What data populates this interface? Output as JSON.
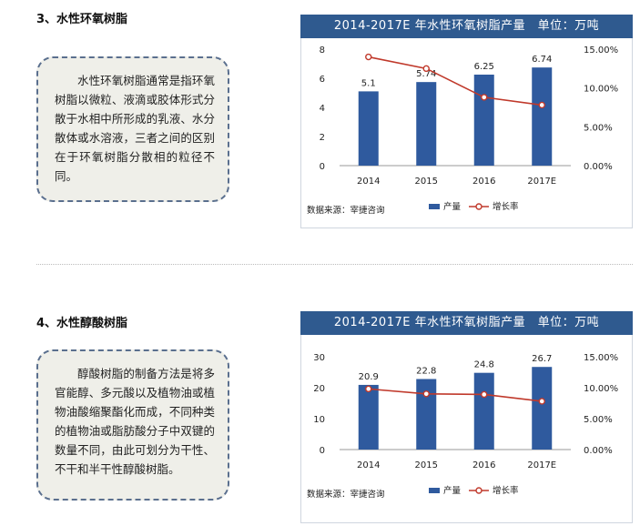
{
  "sections": [
    {
      "heading": "3、水性环氧树脂",
      "description": "水性环氧树脂通常是指环氧树脂以微粒、液滴或胶体形式分散于水相中所形成的乳液、水分散体或水溶液，三者之间的区别在于环氧树脂分散相的粒径不同。"
    },
    {
      "heading": "4、水性醇酸树脂",
      "description": "醇酸树脂的制备方法是将多官能醇、多元酸以及植物油或植物油酸缩聚酯化而成，不同种类的植物油或脂肪酸分子中双键的数量不同，由此可划分为干性、不干和半干性醇酸树脂。"
    }
  ],
  "chart_data": [
    {
      "type": "bar",
      "title": "2014-2017E 年水性环氧树脂产量　单位：万吨",
      "categories": [
        "2014",
        "2015",
        "2016",
        "2017E"
      ],
      "series": [
        {
          "name": "产量",
          "type": "bar",
          "axis": "left",
          "values": [
            5.1,
            5.74,
            6.25,
            6.74
          ],
          "color": "#2f5a9e"
        },
        {
          "name": "增长率",
          "type": "line",
          "axis": "right",
          "values": [
            0.14,
            0.125,
            0.088,
            0.078
          ],
          "color": "#c0392b"
        }
      ],
      "value_labels": [
        "5.1",
        "5.74",
        "6.25",
        "6.74"
      ],
      "ylim": [
        0,
        8
      ],
      "yticks": [
        "0",
        "2",
        "4",
        "6",
        "8"
      ],
      "y2lim": [
        0,
        0.15
      ],
      "y2ticks": [
        "0.00%",
        "5.00%",
        "10.00%",
        "15.00%"
      ],
      "source": "数据来源：宰捷咨询",
      "legend_position": "bottom-right"
    },
    {
      "type": "bar",
      "title": "2014-2017E 年水性环氧树脂产量　单位：万吨",
      "categories": [
        "2014",
        "2015",
        "2016",
        "2017E"
      ],
      "series": [
        {
          "name": "产量",
          "type": "bar",
          "axis": "left",
          "values": [
            20.9,
            22.8,
            24.8,
            26.7
          ],
          "color": "#2f5a9e"
        },
        {
          "name": "增长率",
          "type": "line",
          "axis": "right",
          "values": [
            0.098,
            0.09,
            0.089,
            0.078
          ],
          "color": "#c0392b"
        }
      ],
      "value_labels": [
        "20.9",
        "22.8",
        "24.8",
        "26.7"
      ],
      "ylim": [
        0,
        30
      ],
      "yticks": [
        "0",
        "10",
        "20",
        "30"
      ],
      "y2lim": [
        0,
        0.15
      ],
      "y2ticks": [
        "0.00%",
        "5.00%",
        "10.00%",
        "15.00%"
      ],
      "source": "数据来源：宰捷咨询",
      "legend_position": "bottom-right"
    }
  ]
}
